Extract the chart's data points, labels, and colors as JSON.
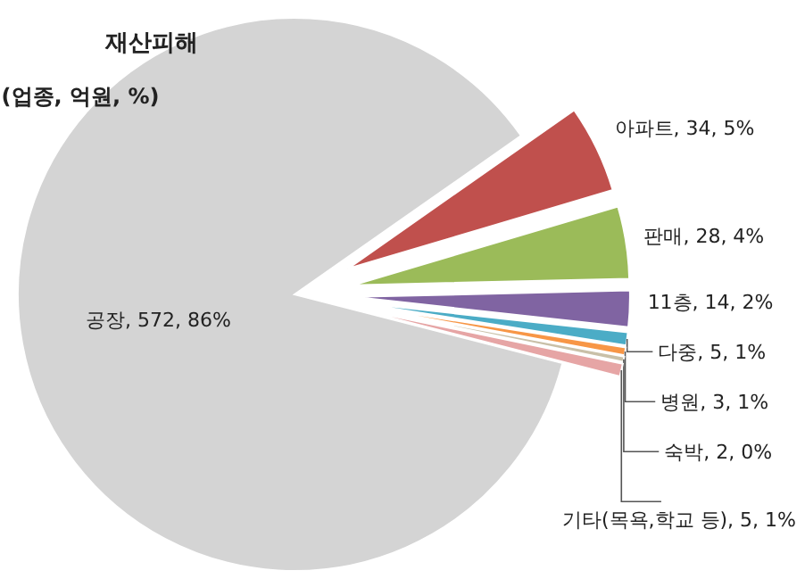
{
  "chart_data": {
    "type": "pie",
    "title": "재산피해",
    "subtitle": "(업종, 억원, %)",
    "categories": [
      "아파트",
      "판매",
      "11층",
      "다중",
      "병원",
      "숙박",
      "기타(목욕,학교 등)",
      "공장"
    ],
    "values": [
      34,
      28,
      14,
      5,
      3,
      2,
      5,
      572
    ],
    "value_labels": [
      "34, 5%",
      "28, 4%",
      "14, 2%",
      "5, 1%",
      "3, 1%",
      "2, 0%",
      "5, 1%",
      "572, 86%"
    ],
    "colors": [
      "#c0504d",
      "#9bbb59",
      "#8064a2",
      "#4bacc6",
      "#f79646",
      "#c9c0a8",
      "#e6a5a5",
      "#d4d4d4"
    ]
  }
}
